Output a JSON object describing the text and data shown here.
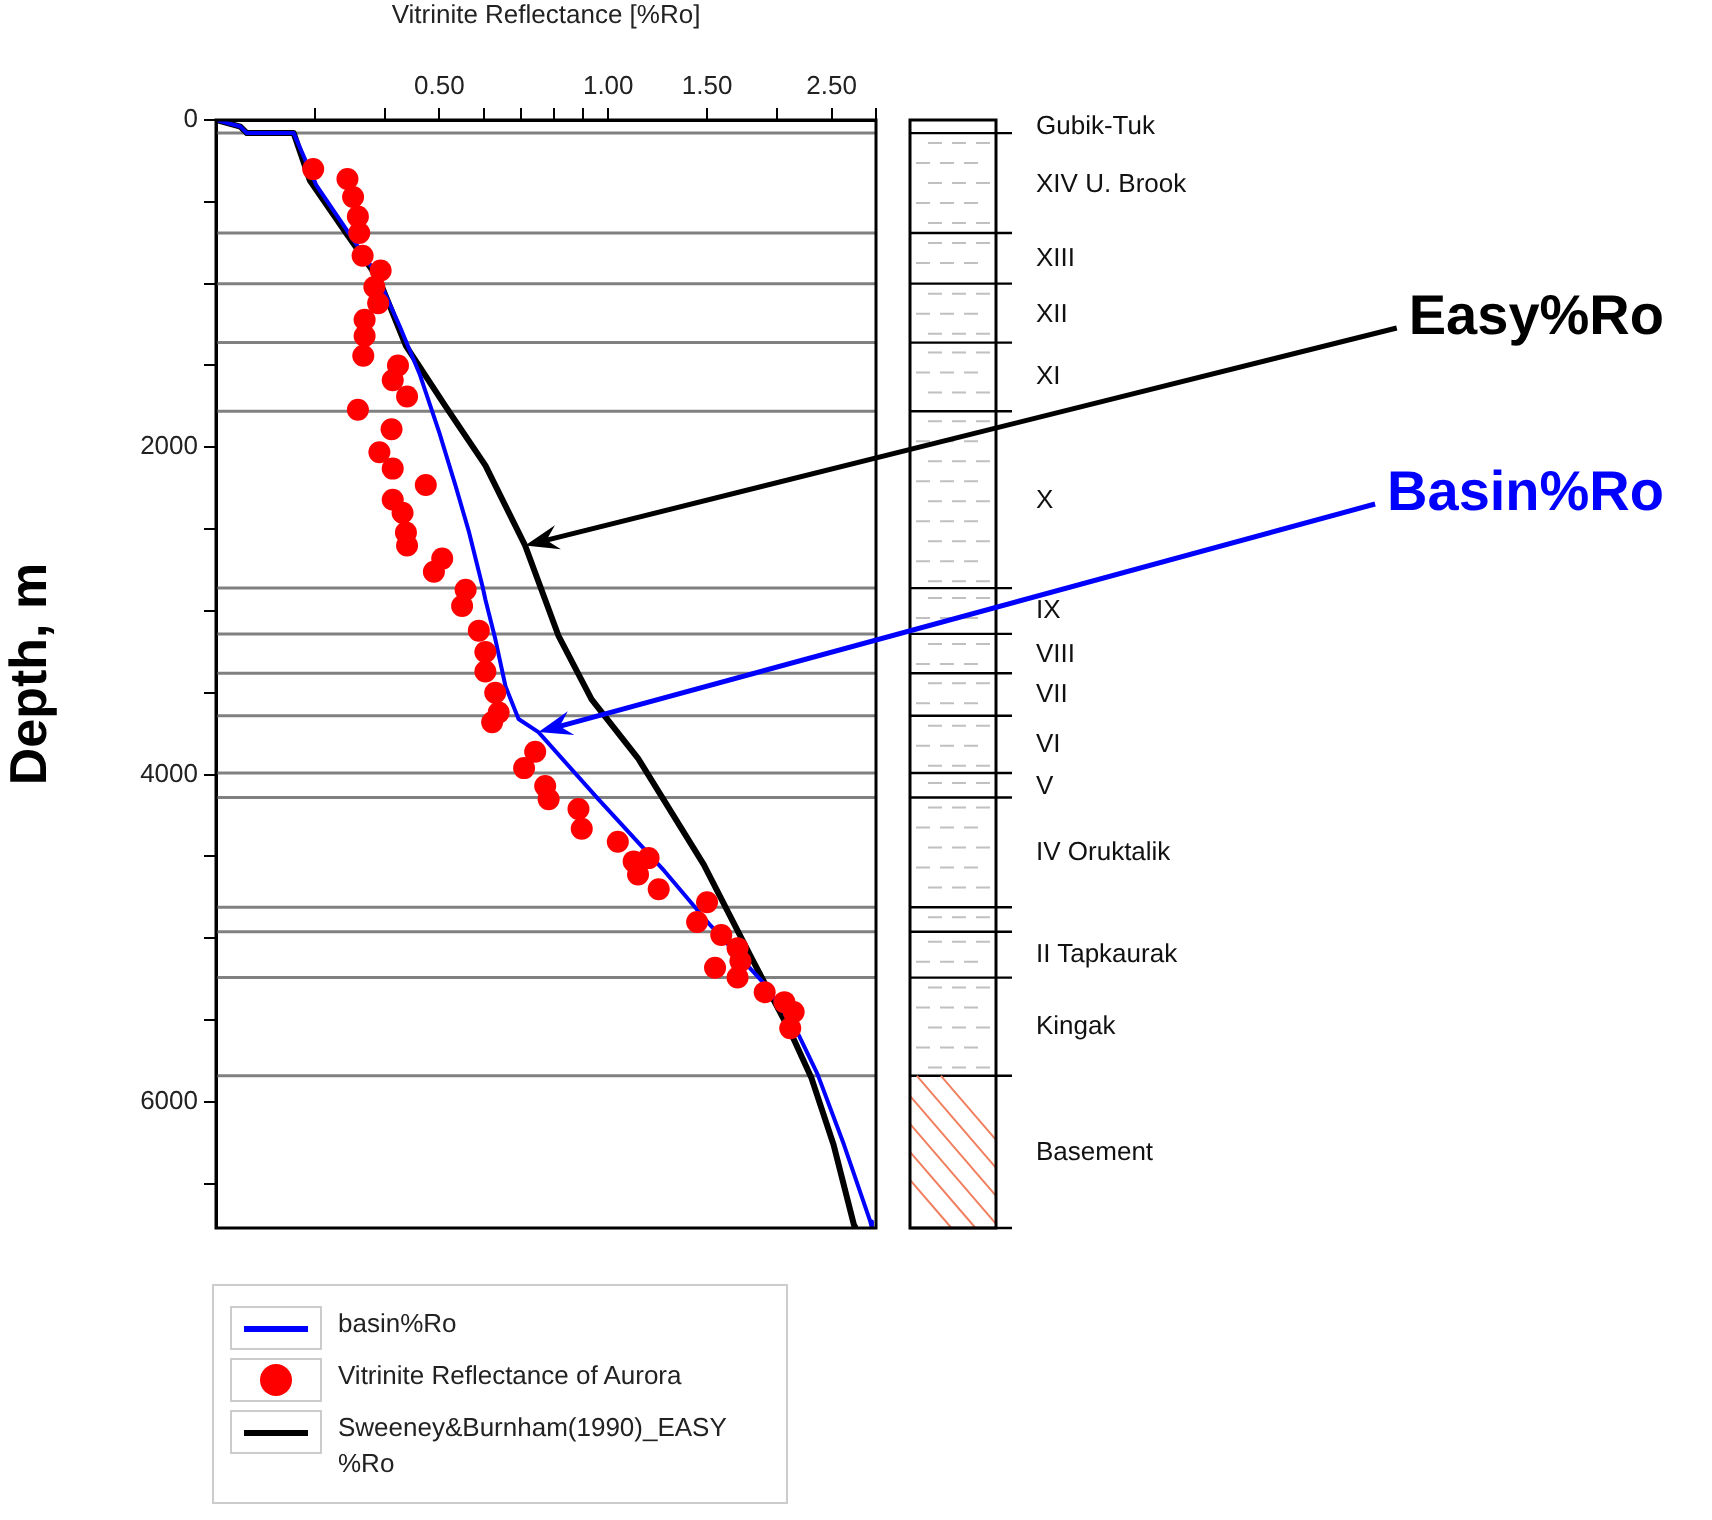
{
  "chart_data": {
    "type": "line",
    "xlabel": "Vitrinite Reflectance [%Ro]",
    "ylabel": "Depth, m",
    "log": "x",
    "legend": "bottom",
    "xlim": [
      0.2,
      3
    ],
    "ylim": [
      6770,
      0
    ],
    "xticks": [
      {
        "value": 0.3,
        "label": null
      },
      {
        "value": 0.4,
        "label": null
      },
      {
        "value": 0.5,
        "label": "0.50"
      },
      {
        "value": 0.6,
        "label": null
      },
      {
        "value": 0.7,
        "label": null
      },
      {
        "value": 0.8,
        "label": null
      },
      {
        "value": 0.9,
        "label": null
      },
      {
        "value": 1,
        "label": "1.00"
      },
      {
        "value": 1.5,
        "label": "1.50"
      },
      {
        "value": 2,
        "label": null
      },
      {
        "value": 2.5,
        "label": "2.50"
      },
      {
        "value": 3,
        "label": null
      }
    ],
    "yticks": [
      0,
      {
        "value": 500,
        "label": null
      },
      {
        "value": 1000,
        "label": null
      },
      {
        "value": 1500,
        "label": null
      },
      2000,
      {
        "value": 2500,
        "label": null
      },
      {
        "value": 3000,
        "label": null
      },
      {
        "value": 3500,
        "label": null
      },
      4000,
      {
        "value": 4500,
        "label": null
      },
      {
        "value": 5000,
        "label": null
      },
      {
        "value": 5500,
        "label": null
      },
      6000,
      {
        "value": 6500,
        "label": null
      }
    ],
    "series": [
      {
        "name": "basin%Ro",
        "type": "line",
        "marker": "none",
        "color": "#0000ff",
        "x": [
          0.2,
          0.221,
          0.227,
          0.275,
          0.302,
          0.351,
          0.386,
          0.425,
          0.461,
          0.5,
          0.535,
          0.565,
          0.597,
          0.604,
          0.629,
          0.656,
          0.692,
          0.751,
          0.96,
          1.26,
          1.52,
          1.9,
          2.17,
          2.36,
          2.63,
          2.93,
          2.95
        ],
        "values": [
          0,
          40,
          80,
          80,
          400,
          730,
          940,
          1260,
          1550,
          1910,
          2240,
          2520,
          2850,
          2930,
          3170,
          3460,
          3660,
          3740,
          4150,
          4590,
          4920,
          5280,
          5570,
          5830,
          6260,
          6730,
          6770
        ]
      },
      {
        "name": "Vitrinite Reflectance of Aurora",
        "type": "scatter",
        "marker": "circle",
        "color": "#ff0000",
        "x": [
          0.298,
          0.343,
          0.351,
          0.358,
          0.36,
          0.365,
          0.393,
          0.383,
          0.389,
          0.368,
          0.368,
          0.366,
          0.422,
          0.413,
          0.438,
          0.358,
          0.411,
          0.391,
          0.413,
          0.473,
          0.413,
          0.43,
          0.436,
          0.438,
          0.506,
          0.489,
          0.557,
          0.549,
          0.588,
          0.604,
          0.604,
          0.629,
          0.638,
          0.621,
          0.741,
          0.708,
          0.772,
          0.783,
          0.885,
          0.897,
          1.04,
          1.11,
          1.18,
          1.13,
          1.23,
          1.5,
          1.44,
          1.59,
          1.7,
          1.55,
          1.72,
          1.7,
          1.9,
          2.06,
          2.14,
          2.11
        ],
        "values": [
          300,
          360,
          470,
          590,
          690,
          830,
          920,
          1020,
          1120,
          1220,
          1320,
          1440,
          1500,
          1590,
          1690,
          1770,
          1890,
          2030,
          2130,
          2230,
          2320,
          2400,
          2520,
          2600,
          2680,
          2760,
          2870,
          2970,
          3120,
          3250,
          3370,
          3500,
          3620,
          3680,
          3860,
          3960,
          4070,
          4150,
          4210,
          4330,
          4410,
          4530,
          4510,
          4610,
          4700,
          4780,
          4900,
          4980,
          5060,
          5180,
          5140,
          5240,
          5330,
          5390,
          5450,
          5550
        ]
      },
      {
        "name": "Sweeney&Burnham(1990)_EASY %Ro",
        "type": "line",
        "marker": "none",
        "color": "#000000",
        "x": [
          0.2,
          0.221,
          0.227,
          0.275,
          0.294,
          0.341,
          0.391,
          0.436,
          0.513,
          0.604,
          0.711,
          0.815,
          0.934,
          1.13,
          1.48,
          1.8,
          2.11,
          2.3,
          2.52,
          2.74,
          2.76
        ],
        "values": [
          0,
          40,
          80,
          80,
          370,
          690,
          980,
          1380,
          1750,
          2110,
          2600,
          3150,
          3540,
          3900,
          4550,
          5120,
          5570,
          5850,
          6260,
          6750,
          6770
        ]
      }
    ],
    "ref_lines": [
      {
        "axis": "y",
        "value": 80,
        "color": "#808080"
      },
      {
        "axis": "y",
        "value": 690,
        "color": "#808080"
      },
      {
        "axis": "y",
        "value": 1000,
        "color": "#808080"
      },
      {
        "axis": "y",
        "value": 1360,
        "color": "#808080"
      },
      {
        "axis": "y",
        "value": 1780,
        "color": "#808080"
      },
      {
        "axis": "y",
        "value": 2860,
        "color": "#808080"
      },
      {
        "axis": "y",
        "value": 3140,
        "color": "#808080"
      },
      {
        "axis": "y",
        "value": 3380,
        "color": "#808080"
      },
      {
        "axis": "y",
        "value": 3640,
        "color": "#808080"
      },
      {
        "axis": "y",
        "value": 3990,
        "color": "#808080"
      },
      {
        "axis": "y",
        "value": 4140,
        "color": "#808080"
      },
      {
        "axis": "y",
        "value": 4810,
        "color": "#808080"
      },
      {
        "axis": "y",
        "value": 4960,
        "color": "#808080"
      },
      {
        "axis": "y",
        "value": 5240,
        "color": "#808080"
      },
      {
        "axis": "y",
        "value": 5840,
        "color": "#808080"
      }
    ],
    "annotations": [
      {
        "text": "Easy%Ro",
        "x": 0.711,
        "y": 2600
      },
      {
        "text": "Basin%Ro",
        "x": 0.751,
        "y": 3740
      },
      "Gubik-Tuk",
      "XIV U. Brook",
      "XIII",
      "XII",
      "XI",
      "X",
      "IX",
      "VIII",
      "VII",
      "VI",
      "V",
      "IV Oruktalik",
      "II Tapkaurak",
      "Kingak",
      "Basement"
    ]
  }
}
